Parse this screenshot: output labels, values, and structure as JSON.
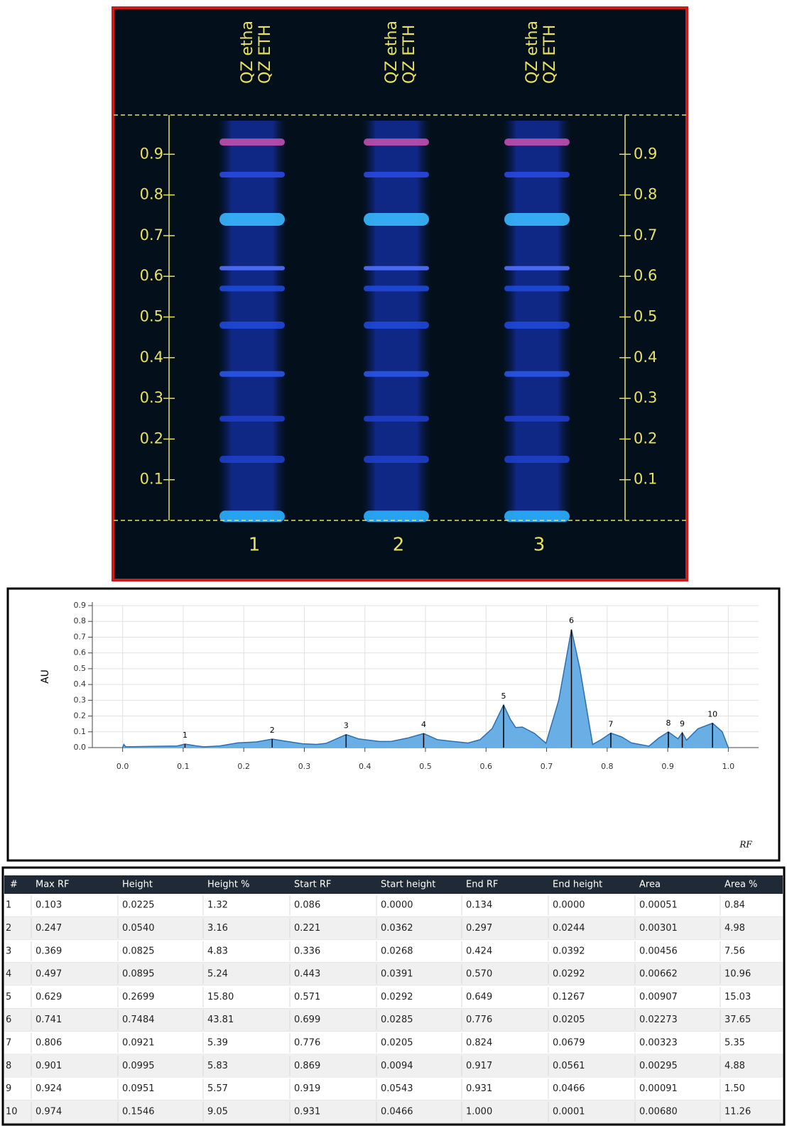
{
  "plate": {
    "lane_labels": [
      [
        "QZ etha",
        "QZ ETH"
      ],
      [
        "QZ etha",
        "QZ ETH"
      ],
      [
        "QZ etha",
        "QZ ETH"
      ]
    ],
    "lane_numbers": [
      "1",
      "2",
      "3"
    ],
    "rf_ticks": [
      0.1,
      0.2,
      0.3,
      0.4,
      0.5,
      0.6,
      0.7,
      0.8,
      0.9
    ]
  },
  "chart_data": {
    "type": "area",
    "y_label": "AU",
    "x_label": "RF",
    "color": "#6aaee6",
    "line_color": "#2a6fb0",
    "xlim": [
      -0.05,
      1.05
    ],
    "ylim": [
      0,
      0.9
    ],
    "xticks": [
      {
        "value": 0,
        "label": "0.0"
      },
      {
        "value": 0.1,
        "label": "0.1"
      },
      {
        "value": 0.2,
        "label": "0.2"
      },
      {
        "value": 0.3,
        "label": "0.3"
      },
      {
        "value": 0.4,
        "label": "0.4"
      },
      {
        "value": 0.5,
        "label": "0.5"
      },
      {
        "value": 0.6,
        "label": "0.6"
      },
      {
        "value": 0.7,
        "label": "0.7"
      },
      {
        "value": 0.8,
        "label": "0.8"
      },
      {
        "value": 0.9,
        "label": "0.9"
      },
      {
        "value": 1,
        "label": "1.0"
      }
    ],
    "yticks": [
      {
        "value": 0,
        "label": "0.0"
      },
      {
        "value": 0.1,
        "label": "0.1"
      },
      {
        "value": 0.2,
        "label": "0.2"
      },
      {
        "value": 0.3,
        "label": "0.3"
      },
      {
        "value": 0.4,
        "label": "0.4"
      },
      {
        "value": 0.5,
        "label": "0.5"
      },
      {
        "value": 0.6,
        "label": "0.6"
      },
      {
        "value": 0.7,
        "label": "0.7"
      },
      {
        "value": 0.8,
        "label": "0.8"
      },
      {
        "value": 0.9,
        "label": "0.9"
      }
    ],
    "grid": true,
    "x": [
      0,
      0.002,
      0.005,
      0.05,
      0.09,
      0.103,
      0.12,
      0.134,
      0.16,
      0.19,
      0.221,
      0.247,
      0.27,
      0.297,
      0.32,
      0.336,
      0.369,
      0.39,
      0.424,
      0.443,
      0.47,
      0.497,
      0.52,
      0.57,
      0.59,
      0.61,
      0.629,
      0.64,
      0.649,
      0.66,
      0.68,
      0.699,
      0.72,
      0.741,
      0.755,
      0.776,
      0.79,
      0.806,
      0.824,
      0.84,
      0.869,
      0.885,
      0.901,
      0.917,
      0.924,
      0.931,
      0.95,
      0.974,
      0.99,
      1.0
    ],
    "values": [
      0,
      0.02,
      0.005,
      0.008,
      0.01,
      0.0225,
      0.012,
      0.005,
      0.01,
      0.03,
      0.036,
      0.054,
      0.04,
      0.024,
      0.02,
      0.027,
      0.0825,
      0.055,
      0.039,
      0.039,
      0.06,
      0.0895,
      0.05,
      0.029,
      0.05,
      0.12,
      0.27,
      0.18,
      0.127,
      0.13,
      0.09,
      0.028,
      0.3,
      0.748,
      0.5,
      0.02,
      0.05,
      0.092,
      0.068,
      0.03,
      0.009,
      0.06,
      0.0995,
      0.056,
      0.095,
      0.047,
      0.12,
      0.1546,
      0.1,
      0.0001
    ],
    "peaks": {
      "labels": [
        "1",
        "2",
        "3",
        "4",
        "5",
        "6",
        "7",
        "8",
        "9",
        "10"
      ],
      "x": [
        0.103,
        0.247,
        0.369,
        0.497,
        0.629,
        0.741,
        0.806,
        0.901,
        0.924,
        0.974
      ],
      "y": [
        0.0225,
        0.054,
        0.0825,
        0.0895,
        0.2699,
        0.7484,
        0.0921,
        0.0995,
        0.0951,
        0.1546
      ]
    }
  },
  "table": {
    "header": [
      "#",
      "Max RF",
      "Height",
      "Height %",
      "Start RF",
      "Start height",
      "End RF",
      "End height",
      "Area",
      "Area %"
    ],
    "rows": [
      [
        "1",
        "0.103",
        "0.0225",
        "1.32",
        "0.086",
        "0.0000",
        "0.134",
        "0.0000",
        "0.00051",
        "0.84"
      ],
      [
        "2",
        "0.247",
        "0.0540",
        "3.16",
        "0.221",
        "0.0362",
        "0.297",
        "0.0244",
        "0.00301",
        "4.98"
      ],
      [
        "3",
        "0.369",
        "0.0825",
        "4.83",
        "0.336",
        "0.0268",
        "0.424",
        "0.0392",
        "0.00456",
        "7.56"
      ],
      [
        "4",
        "0.497",
        "0.0895",
        "5.24",
        "0.443",
        "0.0391",
        "0.570",
        "0.0292",
        "0.00662",
        "10.96"
      ],
      [
        "5",
        "0.629",
        "0.2699",
        "15.80",
        "0.571",
        "0.0292",
        "0.649",
        "0.1267",
        "0.00907",
        "15.03"
      ],
      [
        "6",
        "0.741",
        "0.7484",
        "43.81",
        "0.699",
        "0.0285",
        "0.776",
        "0.0205",
        "0.02273",
        "37.65"
      ],
      [
        "7",
        "0.806",
        "0.0921",
        "5.39",
        "0.776",
        "0.0205",
        "0.824",
        "0.0679",
        "0.00323",
        "5.35"
      ],
      [
        "8",
        "0.901",
        "0.0995",
        "5.83",
        "0.869",
        "0.0094",
        "0.917",
        "0.0561",
        "0.00295",
        "4.88"
      ],
      [
        "9",
        "0.924",
        "0.0951",
        "5.57",
        "0.919",
        "0.0543",
        "0.931",
        "0.0466",
        "0.00091",
        "1.50"
      ],
      [
        "10",
        "0.974",
        "0.1546",
        "9.05",
        "0.931",
        "0.0466",
        "1.000",
        "0.0001",
        "0.00680",
        "11.26"
      ]
    ]
  }
}
